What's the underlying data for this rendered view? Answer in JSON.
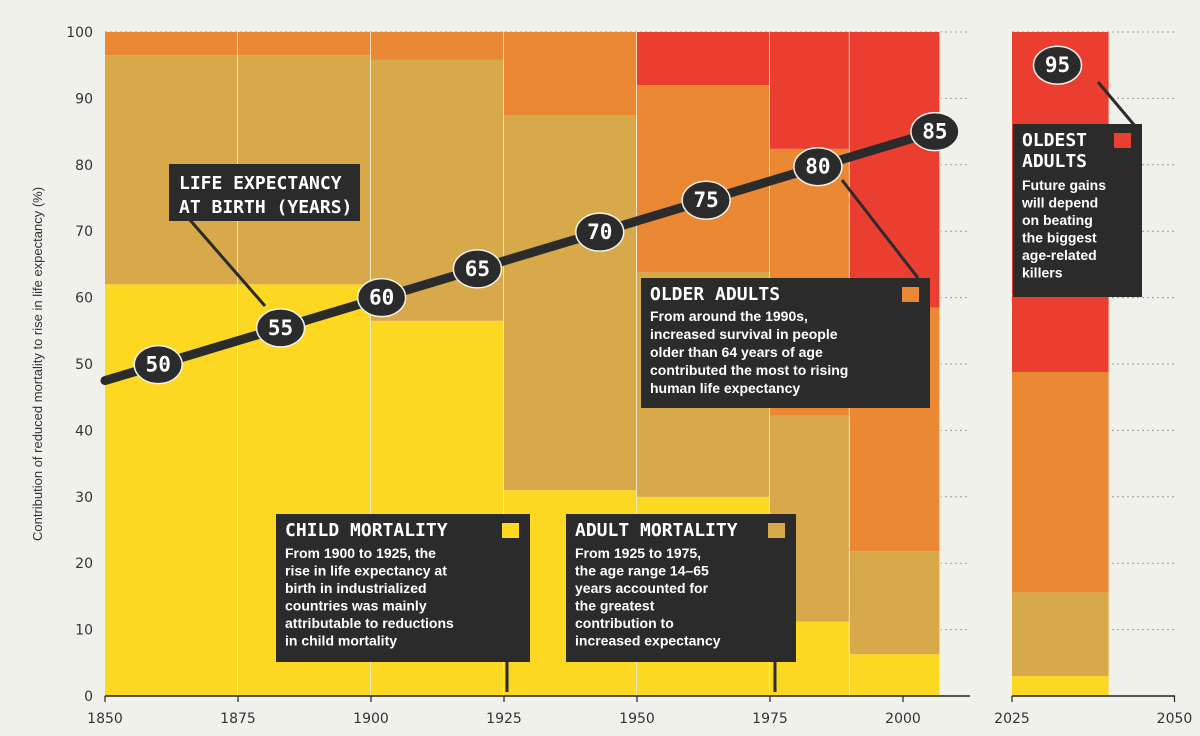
{
  "chart_data": {
    "type": "bar",
    "ylabel": "Contribution of reduced mortality to rise in life expectancy (%)",
    "ylim": [
      0,
      100
    ],
    "y_ticks": [
      "0",
      "10",
      "20",
      "30",
      "40",
      "50",
      "60",
      "70",
      "80",
      "90",
      "100"
    ],
    "x_ticks": [
      "1850",
      "1875",
      "1900",
      "1925",
      "1950",
      "1975",
      "2000",
      "2025",
      "2050"
    ],
    "grid": true,
    "bins": [
      {
        "x_start": 1850,
        "x_end": 1875,
        "values": [
          62,
          34.5,
          3.5,
          0
        ]
      },
      {
        "x_start": 1875,
        "x_end": 1900,
        "values": [
          62,
          34.5,
          3.5,
          0
        ]
      },
      {
        "x_start": 1900,
        "x_end": 1925,
        "values": [
          56.5,
          39.3,
          4.2,
          0
        ]
      },
      {
        "x_start": 1925,
        "x_end": 1950,
        "values": [
          31,
          56.5,
          12.5,
          0
        ]
      },
      {
        "x_start": 1950,
        "x_end": 1975,
        "values": [
          30,
          33.8,
          28.2,
          8
        ]
      },
      {
        "x_start": 1975,
        "x_end": 1990,
        "values": [
          11.2,
          31,
          40.2,
          17.6
        ]
      },
      {
        "x_start": 1990,
        "x_end": 2007,
        "values": [
          6.3,
          15.5,
          36.7,
          41.5
        ]
      },
      {
        "x_start": 2025,
        "x_end": 2040,
        "values": [
          3,
          12.6,
          33.2,
          51.2
        ]
      }
    ],
    "series": [
      {
        "key": "child",
        "color": "#fdd823"
      },
      {
        "key": "adult",
        "color": "#d7a94a"
      },
      {
        "key": "older",
        "color": "#ea8834"
      },
      {
        "key": "oldest",
        "color": "#ea3e30"
      }
    ],
    "life_expectancy": {
      "line": [
        {
          "x": 1850,
          "y": 47.5
        },
        {
          "x": 2006,
          "y": 85
        }
      ],
      "labels": [
        {
          "year": 1860,
          "value": "50"
        },
        {
          "year": 1883,
          "value": "55"
        },
        {
          "year": 1902,
          "value": "60"
        },
        {
          "year": 1920,
          "value": "65"
        },
        {
          "year": 1943,
          "value": "70"
        },
        {
          "year": 1963,
          "value": "75"
        },
        {
          "year": 1984,
          "value": "80"
        },
        {
          "year": 2006,
          "value": "85"
        },
        {
          "year": 2032,
          "value": "95",
          "y_pct": 95
        }
      ]
    },
    "annotations": {
      "life_title": [
        "LIFE EXPECTANCY",
        "AT BIRTH (YEARS)"
      ],
      "child": {
        "title": "CHILD MORTALITY",
        "lines": [
          "From 1900 to 1925, the",
          "rise in life expectancy at",
          "birth in industrialized",
          "countries was mainly",
          "attributable to reductions",
          "in child mortality"
        ]
      },
      "adult": {
        "title": "ADULT MORTALITY",
        "lines": [
          "From 1925 to 1975,",
          "the age range 14–65",
          "years accounted for",
          "the greatest",
          "contribution to",
          "increased expectancy"
        ]
      },
      "older": {
        "title": "OLDER ADULTS",
        "lines": [
          "From around the 1990s,",
          "increased survival in people",
          "older than 64 years of age",
          "contributed the most to rising",
          "human life expectancy"
        ]
      },
      "oldest": {
        "title_lines": [
          "OLDEST",
          "ADULTS"
        ],
        "lines": [
          "Future gains",
          "will depend",
          "on beating",
          "the biggest",
          "age-related",
          "killers"
        ]
      }
    }
  }
}
